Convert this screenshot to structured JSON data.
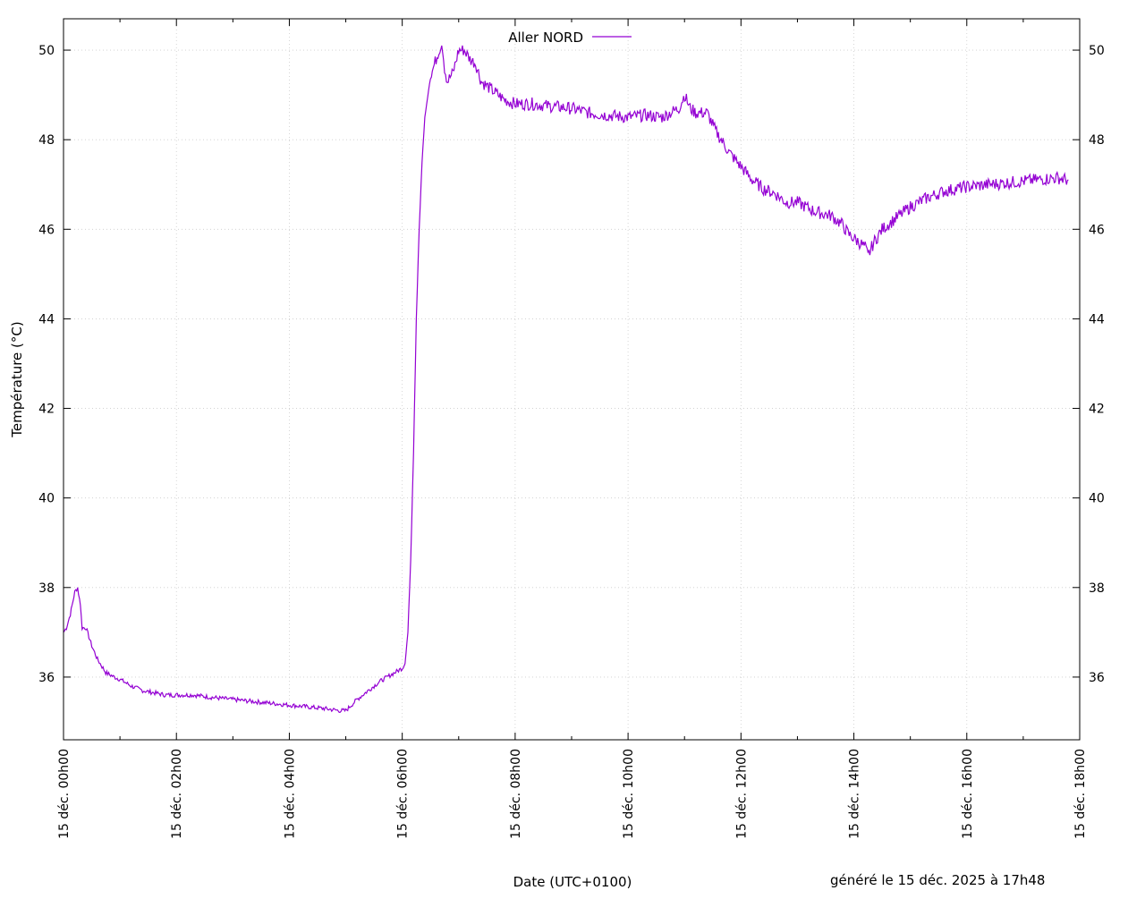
{
  "chart_data": {
    "type": "line",
    "title": "",
    "xlabel": "Date (UTC+0100)",
    "ylabel": "Température (°C)",
    "ylim": [
      34.6,
      50.7
    ],
    "xlim_hours": [
      0,
      18
    ],
    "y_ticks": [
      36,
      38,
      40,
      42,
      44,
      46,
      48,
      50
    ],
    "x_ticks": [
      {
        "hour": 0,
        "label": "15 déc. 00h00"
      },
      {
        "hour": 2,
        "label": "15 déc. 02h00"
      },
      {
        "hour": 4,
        "label": "15 déc. 04h00"
      },
      {
        "hour": 6,
        "label": "15 déc. 06h00"
      },
      {
        "hour": 8,
        "label": "15 déc. 08h00"
      },
      {
        "hour": 10,
        "label": "15 déc. 10h00"
      },
      {
        "hour": 12,
        "label": "15 déc. 12h00"
      },
      {
        "hour": 14,
        "label": "15 déc. 14h00"
      },
      {
        "hour": 16,
        "label": "15 déc. 16h00"
      },
      {
        "hour": 18,
        "label": "15 déc. 18h00"
      }
    ],
    "grid": true,
    "legend_position": "top-center",
    "series": [
      {
        "name": "Aller NORD",
        "color": "#9400d3",
        "x": [
          0,
          0.05,
          0.12,
          0.2,
          0.25,
          0.3,
          0.33,
          0.4,
          0.5,
          0.6,
          0.75,
          0.9,
          1.0,
          1.2,
          1.4,
          1.6,
          1.8,
          2.0,
          2.3,
          2.6,
          3.0,
          3.4,
          3.8,
          4.2,
          4.6,
          4.9,
          5.0,
          5.2,
          5.4,
          5.6,
          5.8,
          6.0,
          6.05,
          6.1,
          6.15,
          6.2,
          6.25,
          6.3,
          6.35,
          6.4,
          6.5,
          6.55,
          6.6,
          6.65,
          6.7,
          6.75,
          6.8,
          6.9,
          7.0,
          7.1,
          7.2,
          7.3,
          7.4,
          7.6,
          7.8,
          8.0,
          8.3,
          8.6,
          9.0,
          9.3,
          9.6,
          10.0,
          10.3,
          10.6,
          10.9,
          11.0,
          11.1,
          11.2,
          11.4,
          11.55,
          11.7,
          11.8,
          12.0,
          12.2,
          12.4,
          12.6,
          12.8,
          13.0,
          13.3,
          13.6,
          13.8,
          13.9,
          14.0,
          14.1,
          14.2,
          14.25,
          14.35,
          14.5,
          14.7,
          15.0,
          15.3,
          15.6,
          16.0,
          16.4,
          16.8,
          17.2,
          17.6,
          17.8
        ],
        "values": [
          37.0,
          37.1,
          37.4,
          37.9,
          38.0,
          37.6,
          37.1,
          37.1,
          36.7,
          36.4,
          36.1,
          36.0,
          35.95,
          35.8,
          35.7,
          35.65,
          35.6,
          35.6,
          35.6,
          35.55,
          35.5,
          35.45,
          35.4,
          35.35,
          35.3,
          35.25,
          35.25,
          35.5,
          35.7,
          35.9,
          36.05,
          36.2,
          36.3,
          37.0,
          38.6,
          41.0,
          44.0,
          46.0,
          47.5,
          48.5,
          49.4,
          49.6,
          49.8,
          50.0,
          50.1,
          49.6,
          49.3,
          49.5,
          50.0,
          50.0,
          49.8,
          49.7,
          49.3,
          49.1,
          48.9,
          48.8,
          48.8,
          48.75,
          48.7,
          48.6,
          48.55,
          48.5,
          48.55,
          48.5,
          48.7,
          49.0,
          48.7,
          48.6,
          48.6,
          48.2,
          47.9,
          47.7,
          47.4,
          47.1,
          46.9,
          46.8,
          46.6,
          46.6,
          46.4,
          46.3,
          46.1,
          45.9,
          45.8,
          45.7,
          45.6,
          45.4,
          45.7,
          46.0,
          46.2,
          46.5,
          46.7,
          46.85,
          46.95,
          47.0,
          47.05,
          47.1,
          47.15,
          47.1
        ]
      }
    ]
  },
  "footer": {
    "generated": "généré le 15 déc. 2025 à 17h48"
  }
}
